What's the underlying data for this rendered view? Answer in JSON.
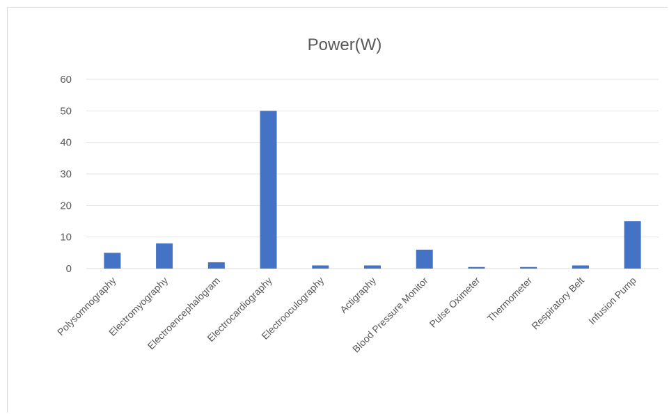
{
  "chart_data": {
    "type": "bar",
    "title": "Power(W)",
    "xlabel": "",
    "ylabel": "",
    "ylim": [
      0,
      60
    ],
    "yticks": [
      "0",
      "10",
      "20",
      "30",
      "40",
      "50",
      "60"
    ],
    "grid": true,
    "legend": "none",
    "bar_color": "#4472c4",
    "categories": [
      "Polysomnography",
      "Electromyography",
      "Electroencephalogram",
      "Electrocardiography",
      "Electrooculography",
      "Actigraphy",
      "Blood Pressure Monitor",
      "Pulse Oximeter",
      "Thermometer",
      "Respiratory Belt",
      "Infusion Pump"
    ],
    "values": [
      5,
      8,
      2,
      50,
      1,
      1,
      6,
      0.5,
      0.5,
      1,
      15
    ]
  }
}
